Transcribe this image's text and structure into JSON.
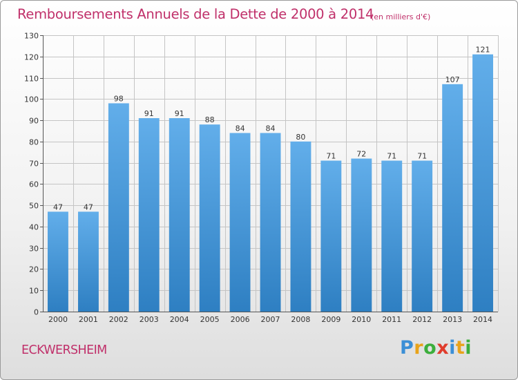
{
  "header": {
    "title": "Remboursements Annuels de la Dette de 2000 à 2014",
    "unit": "(en milliers d'€)"
  },
  "footer": {
    "commune": "ECKWERSHEIM",
    "logo_letters": [
      "P",
      "r",
      "o",
      "x",
      "i",
      "t",
      "i"
    ],
    "logo_colors": [
      "#3b8fd6",
      "#e8a31a",
      "#3cae3c",
      "#e03c2c",
      "#3b8fd6",
      "#e8a31a",
      "#3cae3c"
    ]
  },
  "colors": {
    "bar": "#3f97d9",
    "bar_light": "#6db3ea",
    "bar_dark": "#2a77bb",
    "grid": "#c4c4c4",
    "title": "#c0306a"
  },
  "chart_data": {
    "type": "bar",
    "title": "Remboursements Annuels de la Dette de 2000 à 2014",
    "xlabel": "",
    "ylabel": "",
    "categories": [
      "2000",
      "2001",
      "2002",
      "2003",
      "2004",
      "2005",
      "2006",
      "2007",
      "2008",
      "2009",
      "2010",
      "2011",
      "2012",
      "2013",
      "2014"
    ],
    "values": [
      47,
      47,
      98,
      91,
      91,
      88,
      84,
      84,
      80,
      71,
      72,
      71,
      71,
      107,
      121
    ],
    "ylim": [
      0,
      130
    ],
    "yticks": [
      0,
      10,
      20,
      30,
      40,
      50,
      60,
      70,
      80,
      90,
      100,
      110,
      120,
      130
    ],
    "grid": true,
    "data_labels": true
  }
}
